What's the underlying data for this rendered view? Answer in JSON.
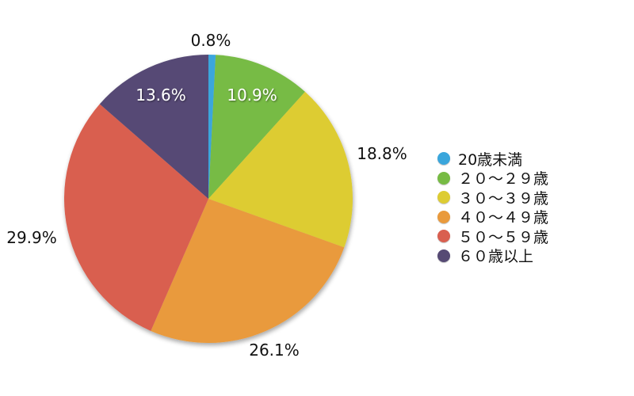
{
  "chart_data": {
    "type": "pie",
    "title": "",
    "start_angle_deg": 0,
    "direction": "clockwise",
    "slices": [
      {
        "label": "20歳未満",
        "value": 0.8,
        "display": "0.8%",
        "color": "#3aa6dc",
        "label_inside": false
      },
      {
        "label": "２０〜２９歳",
        "value": 10.9,
        "display": "10.9%",
        "color": "#77bb44",
        "label_inside": true
      },
      {
        "label": "３０〜３９歳",
        "value": 18.8,
        "display": "18.8%",
        "color": "#ddcc33",
        "label_inside": false
      },
      {
        "label": "４０〜４９歳",
        "value": 26.1,
        "display": "26.1%",
        "color": "#e99a3c",
        "label_inside": false
      },
      {
        "label": "５０〜５９歳",
        "value": 29.9,
        "display": "29.9%",
        "color": "#d95f50",
        "label_inside": false
      },
      {
        "label": "６０歳以上",
        "value": 13.6,
        "display": "13.6%",
        "color": "#564a74",
        "label_inside": true
      }
    ],
    "legend": {
      "position": "right",
      "entries": [
        "20歳未満",
        "２０〜２９歳",
        "３０〜３９歳",
        "４０〜４９歳",
        "５０〜５９歳",
        "６０歳以上"
      ]
    }
  }
}
